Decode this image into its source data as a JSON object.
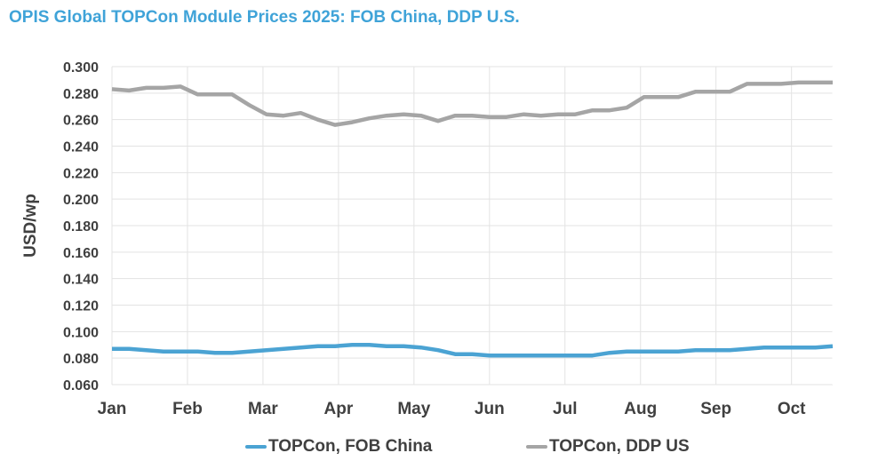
{
  "title": "OPIS Global TOPCon Module Prices 2025: FOB China, DDP U.S.",
  "chart_data": {
    "type": "line",
    "title": "OPIS Global TOPCon Module Prices 2025: FOB China, DDP U.S.",
    "xlabel": "",
    "ylabel": "USD/wp",
    "ylim": [
      0.06,
      0.3
    ],
    "yticks": [
      "0.060",
      "0.080",
      "0.100",
      "0.120",
      "0.140",
      "0.160",
      "0.180",
      "0.200",
      "0.220",
      "0.240",
      "0.260",
      "0.280",
      "0.300"
    ],
    "xtick_labels": [
      "Jan",
      "Feb",
      "Mar",
      "Apr",
      "May",
      "Jun",
      "Jul",
      "Aug",
      "Sep",
      "Oct"
    ],
    "x_frequency": "weekly",
    "points_per_month_approx": 4.4,
    "grid": true,
    "legend_position": "bottom",
    "series": [
      {
        "name": "TOPCon, FOB China",
        "color": "#4ba3d3",
        "values": [
          0.087,
          0.087,
          0.086,
          0.085,
          0.085,
          0.085,
          0.084,
          0.084,
          0.085,
          0.086,
          0.087,
          0.088,
          0.089,
          0.089,
          0.09,
          0.09,
          0.089,
          0.089,
          0.088,
          0.086,
          0.083,
          0.083,
          0.082,
          0.082,
          0.082,
          0.082,
          0.082,
          0.082,
          0.082,
          0.084,
          0.085,
          0.085,
          0.085,
          0.085,
          0.086,
          0.086,
          0.086,
          0.087,
          0.088,
          0.088,
          0.088,
          0.088,
          0.089
        ]
      },
      {
        "name": "TOPCon, DDP US",
        "color": "#a5a5a5",
        "values": [
          0.283,
          0.282,
          0.284,
          0.284,
          0.285,
          0.279,
          0.279,
          0.279,
          0.271,
          0.264,
          0.263,
          0.265,
          0.26,
          0.256,
          0.258,
          0.261,
          0.263,
          0.264,
          0.263,
          0.259,
          0.263,
          0.263,
          0.262,
          0.262,
          0.264,
          0.263,
          0.264,
          0.264,
          0.267,
          0.267,
          0.269,
          0.277,
          0.277,
          0.277,
          0.281,
          0.281,
          0.281,
          0.287,
          0.287,
          0.287,
          0.288,
          0.288,
          0.288
        ]
      }
    ]
  },
  "legend": [
    {
      "label": "TOPCon, FOB China",
      "color": "#4ba3d3"
    },
    {
      "label": "TOPCon, DDP US",
      "color": "#a5a5a5"
    }
  ]
}
